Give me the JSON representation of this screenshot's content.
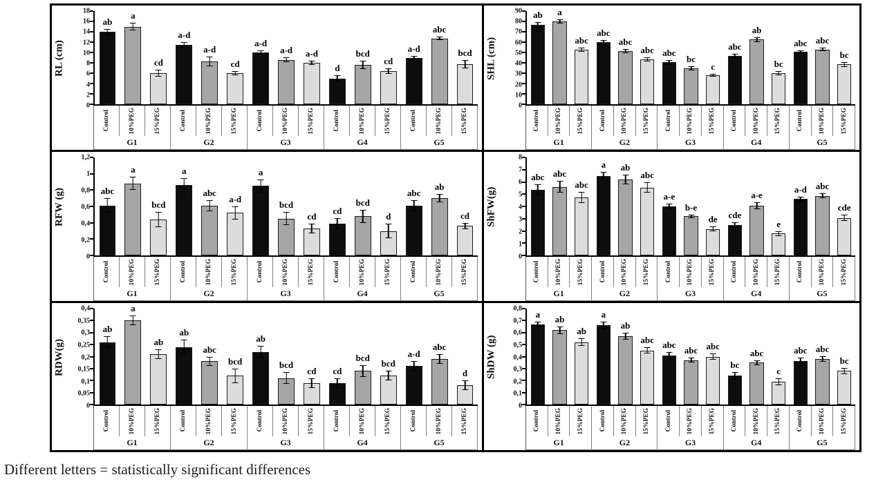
{
  "caption": "Different letters = statistically significant differences",
  "treatments": [
    "Control",
    "10%PEG",
    "15%PEG"
  ],
  "groups": [
    "G1",
    "G2",
    "G3",
    "G4",
    "G5"
  ],
  "colors": {
    "control_bar": "#0d0d0d",
    "peg10_bar": "#a6a6a6",
    "peg15_bar": "#dcdcdc",
    "border": "#000000"
  },
  "chart_data": [
    {
      "id": "RL",
      "type": "bar",
      "ylabel": "RL (cm)",
      "ylim": [
        0,
        18
      ],
      "ytick_step": 2,
      "ytick_labels": [
        "18",
        "16",
        "14",
        "12",
        "10",
        "8",
        "6",
        "4",
        "2",
        "0"
      ],
      "categories": [
        "G1",
        "G2",
        "G3",
        "G4",
        "G5"
      ],
      "series_labels": [
        "Control",
        "10%PEG",
        "15%PEG"
      ],
      "values": [
        [
          14,
          15,
          6
        ],
        [
          11.5,
          8.3,
          6
        ],
        [
          10,
          8.6,
          8
        ],
        [
          5,
          7.6,
          6.4
        ],
        [
          9,
          12.7,
          7.7
        ]
      ],
      "errors": [
        [
          0.6,
          0.7,
          0.7
        ],
        [
          0.5,
          0.9,
          0.4
        ],
        [
          0.35,
          0.5,
          0.35
        ],
        [
          0.6,
          0.8,
          0.5
        ],
        [
          0.4,
          0.35,
          0.8
        ]
      ],
      "letters": [
        [
          "ab",
          "a",
          "cd"
        ],
        [
          "a-d",
          "a-d",
          "cd"
        ],
        [
          "a-d",
          "a-d",
          "a-d"
        ],
        [
          "d",
          "bcd",
          "cd"
        ],
        [
          "a-d",
          "abc",
          "bcd"
        ]
      ]
    },
    {
      "id": "SHL",
      "type": "bar",
      "ylabel": "SHL (cm)",
      "ylim": [
        0,
        90
      ],
      "ytick_step": 10,
      "ytick_labels": [
        "90",
        "80",
        "70",
        "60",
        "50",
        "40",
        "30",
        "20",
        "10",
        "0"
      ],
      "categories": [
        "G1",
        "G2",
        "G3",
        "G4",
        "G5"
      ],
      "series_labels": [
        "Control",
        "10%PEG",
        "15%PEG"
      ],
      "values": [
        [
          77,
          80,
          52.5
        ],
        [
          60,
          51.5,
          43.5
        ],
        [
          40.5,
          35,
          28
        ],
        [
          46.5,
          62.5,
          30
        ],
        [
          50.5,
          53,
          38.5
        ]
      ],
      "errors": [
        [
          2.5,
          2,
          2
        ],
        [
          2,
          2,
          2
        ],
        [
          2.5,
          2,
          1.5
        ],
        [
          2,
          2.5,
          2
        ],
        [
          1.5,
          1.5,
          2.5
        ]
      ],
      "letters": [
        [
          "ab",
          "a",
          "abc"
        ],
        [
          "abc",
          "abc",
          "abc"
        ],
        [
          "abc",
          "bc",
          "c"
        ],
        [
          "abc",
          "ab",
          "bc"
        ],
        [
          "abc",
          "abc",
          "bc"
        ]
      ]
    },
    {
      "id": "RFW",
      "type": "bar",
      "ylabel": "RFW (g)",
      "ylim": [
        0,
        1.2
      ],
      "ytick_step": 0.2,
      "ytick_labels": [
        "1,2",
        "1",
        "0,8",
        "0,6",
        "0,4",
        "0,2",
        "0"
      ],
      "categories": [
        "G1",
        "G2",
        "G3",
        "G4",
        "G5"
      ],
      "series_labels": [
        "Control",
        "10%PEG",
        "15%PEG"
      ],
      "values": [
        [
          0.61,
          0.88,
          0.44
        ],
        [
          0.86,
          0.61,
          0.52
        ],
        [
          0.85,
          0.45,
          0.33
        ],
        [
          0.39,
          0.48,
          0.3
        ],
        [
          0.61,
          0.7,
          0.36
        ]
      ],
      "errors": [
        [
          0.09,
          0.08,
          0.09
        ],
        [
          0.09,
          0.07,
          0.08
        ],
        [
          0.08,
          0.08,
          0.06
        ],
        [
          0.07,
          0.08,
          0.09
        ],
        [
          0.07,
          0.05,
          0.04
        ]
      ],
      "letters": [
        [
          "abc",
          "a",
          "bcd"
        ],
        [
          "a",
          "abc",
          "a-d"
        ],
        [
          "a",
          "bcd",
          "cd"
        ],
        [
          "cd",
          "bcd",
          "d"
        ],
        [
          "abc",
          "ab",
          "cd"
        ]
      ]
    },
    {
      "id": "ShFW",
      "type": "bar",
      "ylabel": "ShFW(g)",
      "ylim": [
        0,
        8
      ],
      "ytick_step": 1,
      "ytick_labels": [
        "8",
        "7",
        "6",
        "5",
        "4",
        "3",
        "2",
        "1",
        "0"
      ],
      "categories": [
        "G1",
        "G2",
        "G3",
        "G4",
        "G5"
      ],
      "series_labels": [
        "Control",
        "10%PEG",
        "15%PEG"
      ],
      "values": [
        [
          5.35,
          5.6,
          4.75
        ],
        [
          6.5,
          6.2,
          5.55
        ],
        [
          4,
          3.2,
          2.15
        ],
        [
          2.5,
          4.05,
          1.8
        ],
        [
          4.6,
          4.85,
          3.05
        ]
      ],
      "errors": [
        [
          0.45,
          0.5,
          0.45
        ],
        [
          0.3,
          0.4,
          0.45
        ],
        [
          0.2,
          0.15,
          0.2
        ],
        [
          0.2,
          0.3,
          0.2
        ],
        [
          0.2,
          0.2,
          0.25
        ]
      ],
      "letters": [
        [
          "abc",
          "abc",
          "abc"
        ],
        [
          "a",
          "ab",
          "abc"
        ],
        [
          "a-e",
          "b-e",
          "de"
        ],
        [
          "cde",
          "a-e",
          "e"
        ],
        [
          "a-d",
          "abc",
          "cde"
        ]
      ]
    },
    {
      "id": "RDW",
      "type": "bar",
      "ylabel": "RDW(g)",
      "ylim": [
        0,
        0.4
      ],
      "ytick_step": 0.05,
      "ytick_labels": [
        "0,4",
        "0,35",
        "0,3",
        "0,25",
        "0,2",
        "0,15",
        "0,1",
        "0,05",
        "0"
      ],
      "categories": [
        "G1",
        "G2",
        "G3",
        "G4",
        "G5"
      ],
      "series_labels": [
        "Control",
        "10%PEG",
        "15%PEG"
      ],
      "values": [
        [
          0.26,
          0.35,
          0.21
        ],
        [
          0.24,
          0.18,
          0.12
        ],
        [
          0.22,
          0.11,
          0.09
        ],
        [
          0.09,
          0.14,
          0.12
        ],
        [
          0.16,
          0.19,
          0.08
        ]
      ],
      "errors": [
        [
          0.025,
          0.02,
          0.02
        ],
        [
          0.03,
          0.02,
          0.03
        ],
        [
          0.025,
          0.025,
          0.02
        ],
        [
          0.02,
          0.025,
          0.02
        ],
        [
          0.02,
          0.02,
          0.02
        ]
      ],
      "letters": [
        [
          "ab",
          "a",
          "ab"
        ],
        [
          "ab",
          "abc",
          "bcd"
        ],
        [
          "ab",
          "bcd",
          "cd"
        ],
        [
          "cd",
          "bcd",
          "bcd"
        ],
        [
          "a-d",
          "abc",
          "d"
        ]
      ]
    },
    {
      "id": "ShDW",
      "type": "bar",
      "ylabel": "ShDW (g)",
      "ylim": [
        0,
        0.8
      ],
      "ytick_step": 0.1,
      "ytick_labels": [
        "0,8",
        "0,7",
        "0,6",
        "0,5",
        "0,4",
        "0,3",
        "0,2",
        "0,1",
        "0"
      ],
      "categories": [
        "G1",
        "G2",
        "G3",
        "G4",
        "G5"
      ],
      "series_labels": [
        "Control",
        "10%PEG",
        "15%PEG"
      ],
      "values": [
        [
          0.67,
          0.62,
          0.52
        ],
        [
          0.66,
          0.57,
          0.45
        ],
        [
          0.41,
          0.37,
          0.4
        ],
        [
          0.24,
          0.35,
          0.19
        ],
        [
          0.36,
          0.38,
          0.28
        ]
      ],
      "errors": [
        [
          0.02,
          0.03,
          0.03
        ],
        [
          0.03,
          0.03,
          0.025
        ],
        [
          0.03,
          0.02,
          0.025
        ],
        [
          0.03,
          0.02,
          0.03
        ],
        [
          0.03,
          0.025,
          0.025
        ]
      ],
      "letters": [
        [
          "a",
          "ab",
          "ab"
        ],
        [
          "a",
          "ab",
          "abc"
        ],
        [
          "abc",
          "abc",
          "abc"
        ],
        [
          "bc",
          "abc",
          "c"
        ],
        [
          "abc",
          "abc",
          "bc"
        ]
      ]
    }
  ]
}
